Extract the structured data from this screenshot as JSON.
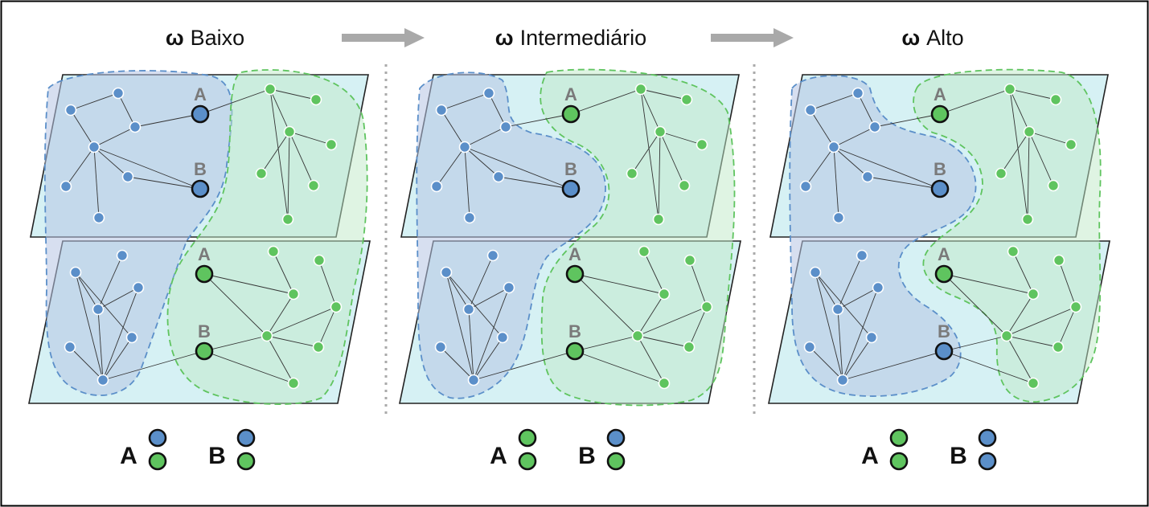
{
  "colors": {
    "blue": "#5b8fc9",
    "green": "#5fc45f",
    "blue_region": "#b7c4e4",
    "green_region": "#bfe9c8",
    "plane": "#d6f1f4",
    "arrow": "#a9a9a9",
    "separator": "#aaaaaa"
  },
  "node_labels": {
    "a": "A",
    "b": "B"
  },
  "panels": [
    {
      "omega": "ω",
      "label": "Baixo",
      "states": {
        "upper_A": "blue",
        "upper_B": "blue",
        "lower_A": "green",
        "lower_B": "green"
      },
      "legend": {
        "A": [
          "blue",
          "green"
        ],
        "B": [
          "blue",
          "green"
        ]
      }
    },
    {
      "omega": "ω",
      "label": "Intermediário",
      "states": {
        "upper_A": "green",
        "upper_B": "blue",
        "lower_A": "green",
        "lower_B": "green"
      },
      "legend": {
        "A": [
          "green",
          "green"
        ],
        "B": [
          "blue",
          "green"
        ]
      }
    },
    {
      "omega": "ω",
      "label": "Alto",
      "states": {
        "upper_A": "green",
        "upper_B": "blue",
        "lower_A": "green",
        "lower_B": "blue"
      },
      "legend": {
        "A": [
          "green",
          "green"
        ],
        "B": [
          "blue",
          "blue"
        ]
      }
    }
  ],
  "arrows": [
    "right-arrow",
    "right-arrow"
  ]
}
